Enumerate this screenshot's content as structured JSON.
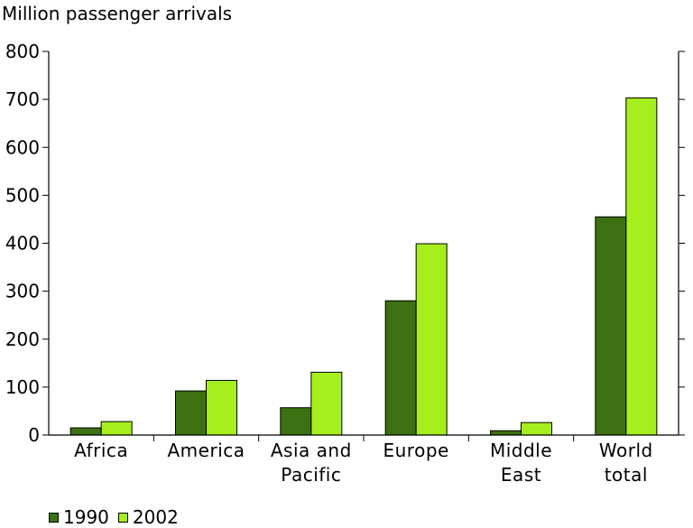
{
  "chart_data": {
    "type": "bar",
    "title": "",
    "ylabel": "Million passenger arrivals",
    "xlabel": "",
    "ylim": [
      0,
      800
    ],
    "yticks": [
      0,
      100,
      200,
      300,
      400,
      500,
      600,
      700,
      800
    ],
    "categories": [
      [
        "Africa"
      ],
      [
        "America"
      ],
      [
        "Asia and",
        "Pacific"
      ],
      [
        "Europe"
      ],
      [
        "Middle",
        "East"
      ],
      [
        "World",
        "total"
      ]
    ],
    "series": [
      {
        "name": "1990",
        "color": "#3d7012",
        "values": [
          15,
          92,
          57,
          280,
          9,
          455
        ]
      },
      {
        "name": "2002",
        "color": "#a6ee1e",
        "values": [
          28,
          114,
          131,
          399,
          26,
          703
        ]
      }
    ],
    "grid": false,
    "legend_position": "bottom-left"
  }
}
